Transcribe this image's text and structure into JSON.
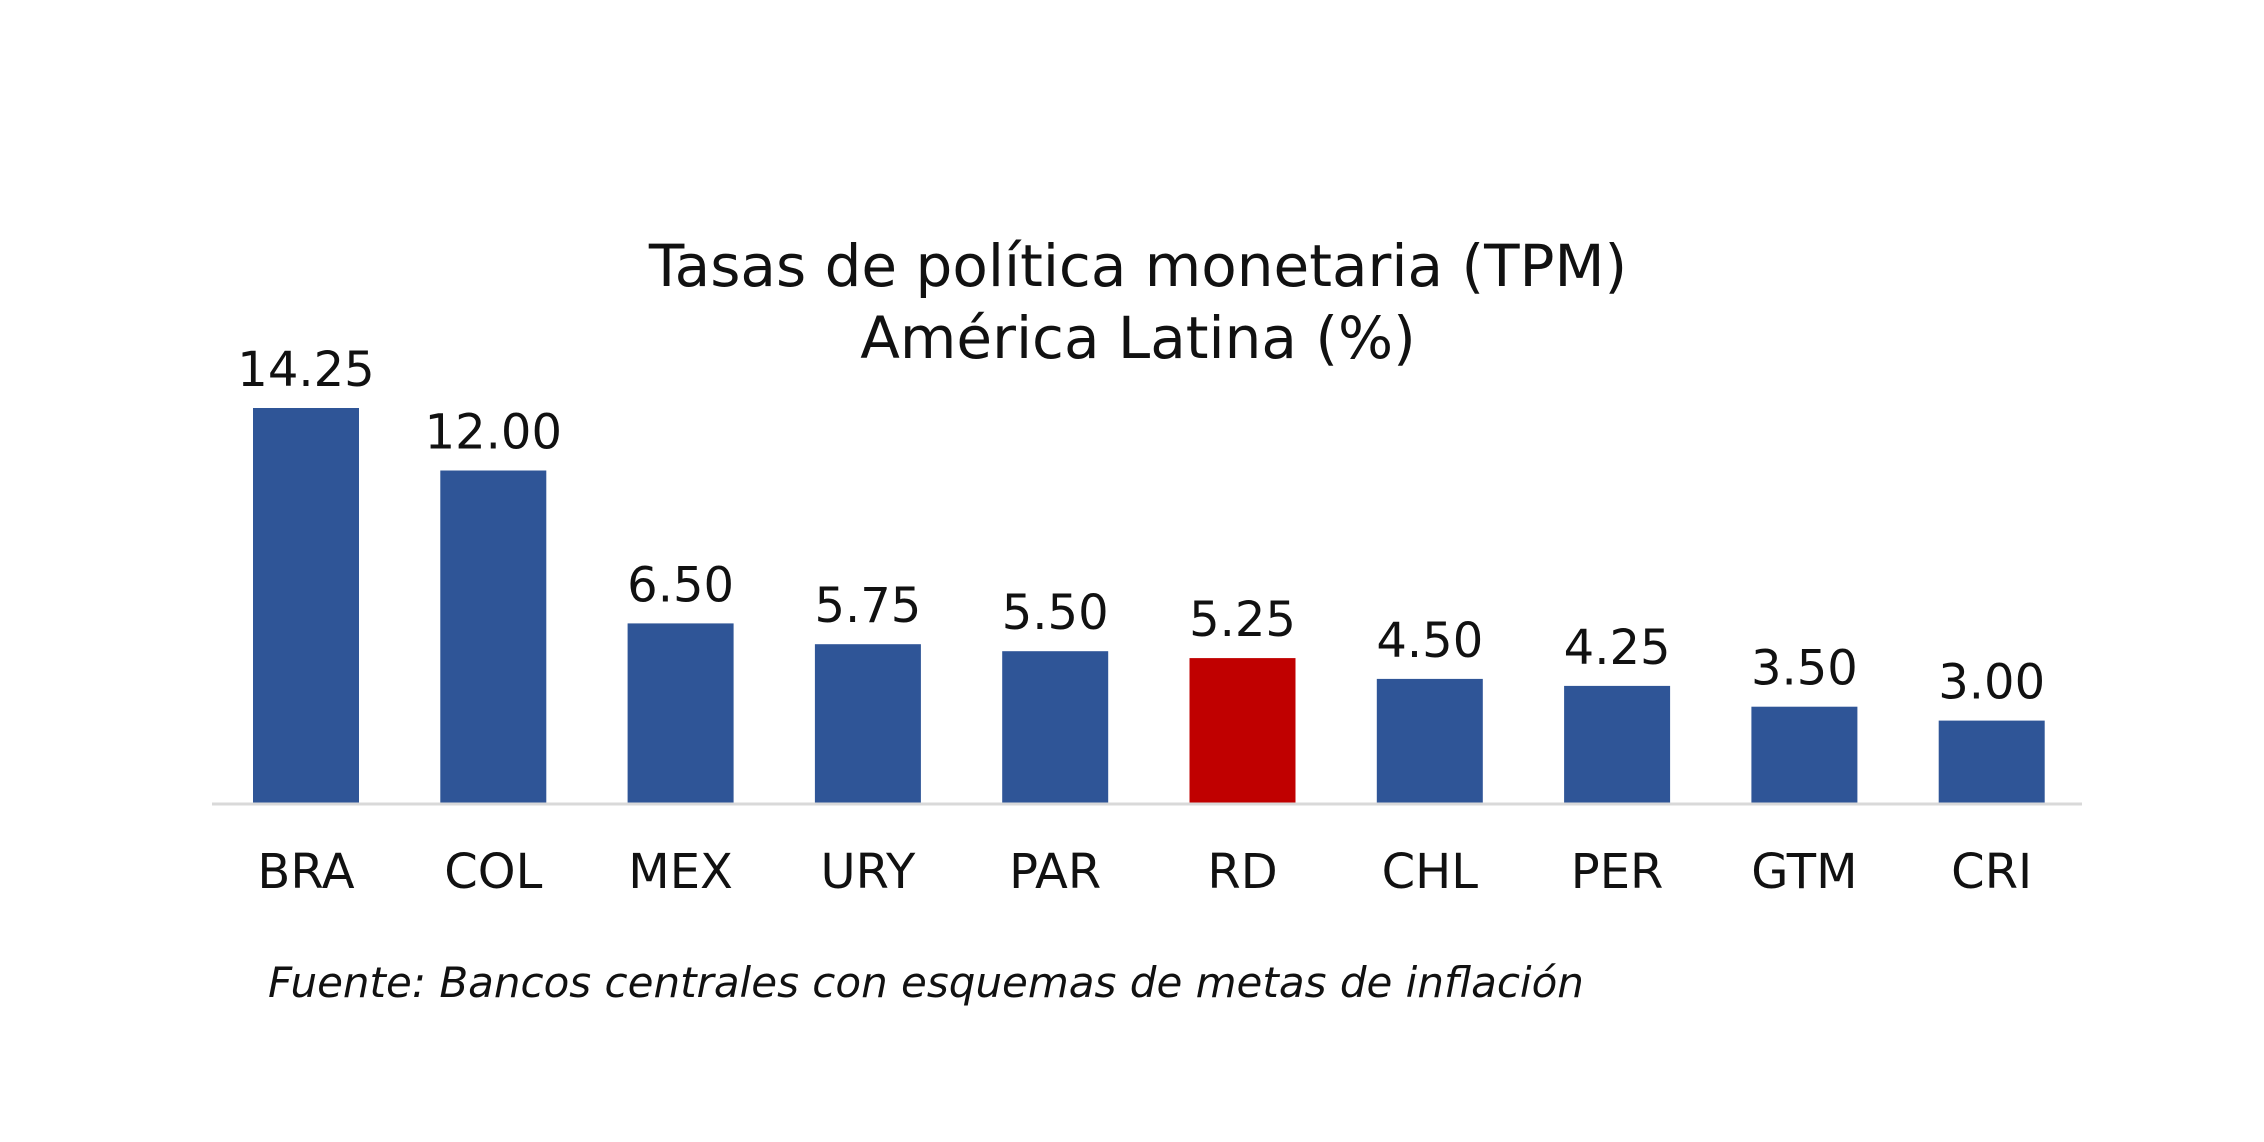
{
  "chart_data": {
    "type": "bar",
    "title": "Tasas de política monetaria (TPM)",
    "subtitle": "América Latina (%)",
    "categories": [
      "BRA",
      "COL",
      "MEX",
      "URY",
      "PAR",
      "RD",
      "CHL",
      "PER",
      "GTM",
      "CRI"
    ],
    "values": [
      14.25,
      12.0,
      6.5,
      5.75,
      5.5,
      5.25,
      4.5,
      4.25,
      3.5,
      3.0
    ],
    "value_labels": [
      "14.25",
      "12.00",
      "6.50",
      "5.75",
      "5.50",
      "5.25",
      "4.50",
      "4.25",
      "3.50",
      "3.00"
    ],
    "highlight_category": "RD",
    "ylim": [
      0,
      14.25
    ],
    "grid": false,
    "legend": "none",
    "colors": {
      "bar": "#2f5597",
      "highlight": "#c00000",
      "axis": "#d9d9d9",
      "text": "#111111"
    }
  },
  "source_note": "Fuente: Bancos centrales con esquemas de metas de inflación"
}
